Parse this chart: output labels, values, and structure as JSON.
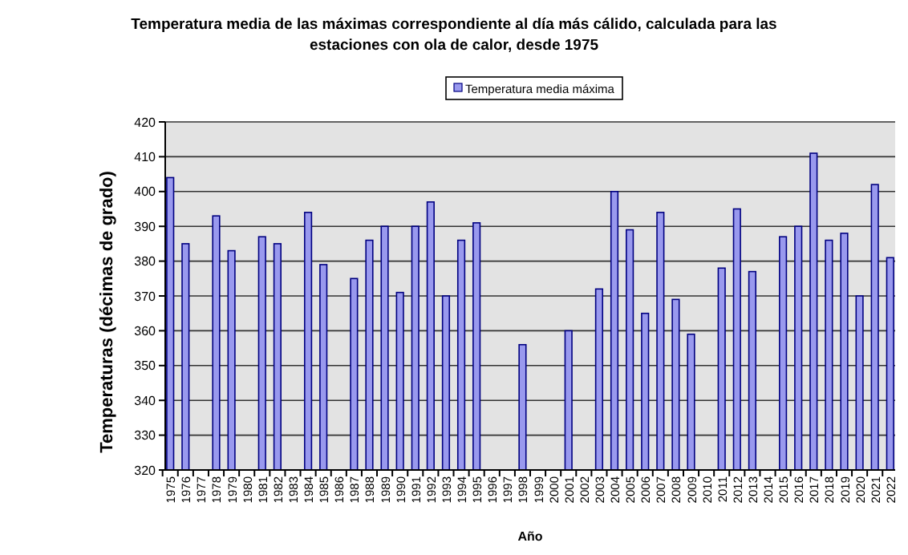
{
  "chart_data": {
    "type": "bar",
    "title": "Temperatura media de las máximas correspondiente al día más cálido, calculada para las estaciones con ola de calor, desde 1975",
    "xlabel": "Año",
    "ylabel": "Temperaturas (décimas de grado)",
    "categories": [
      "1975",
      "1976",
      "1977",
      "1978",
      "1979",
      "1980",
      "1981",
      "1982",
      "1983",
      "1984",
      "1985",
      "1986",
      "1987",
      "1988",
      "1989",
      "1990",
      "1991",
      "1992",
      "1993",
      "1994",
      "1995",
      "1996",
      "1997",
      "1998",
      "1999",
      "2000",
      "2001",
      "2002",
      "2003",
      "2004",
      "2005",
      "2006",
      "2007",
      "2008",
      "2009",
      "2010",
      "2011",
      "2012",
      "2013",
      "2014",
      "2015",
      "2016",
      "2017",
      "2018",
      "2019",
      "2020",
      "2021",
      "2022"
    ],
    "series": [
      {
        "name": "Temperatura media máxima",
        "color": "#9999ee",
        "values": [
          404,
          385,
          null,
          393,
          383,
          null,
          387,
          385,
          null,
          394,
          379,
          null,
          375,
          386,
          390,
          371,
          390,
          397,
          370,
          386,
          391,
          null,
          null,
          356,
          null,
          null,
          360,
          null,
          372,
          400,
          389,
          365,
          394,
          369,
          359,
          null,
          378,
          395,
          377,
          null,
          387,
          390,
          411,
          386,
          388,
          370,
          402,
          381
        ]
      }
    ],
    "ylim": [
      320,
      420
    ],
    "yticks": [
      320,
      330,
      340,
      350,
      360,
      370,
      380,
      390,
      400,
      410,
      420
    ],
    "grid": "y",
    "legend": "top"
  }
}
